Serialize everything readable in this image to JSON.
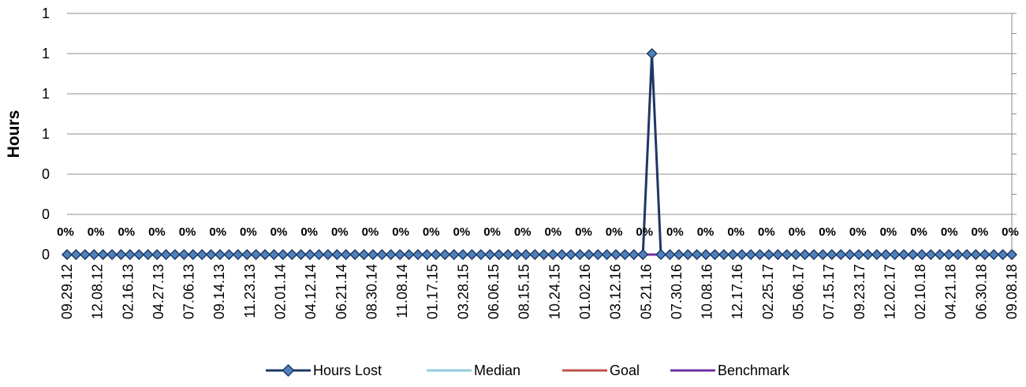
{
  "chart_data": {
    "type": "line",
    "ylabel": "Hours",
    "ylim": [
      0,
      1.2
    ],
    "y_tick_labels": [
      "0",
      "0",
      "0",
      "1",
      "1",
      "1",
      "1"
    ],
    "grid": true,
    "legend_position": "bottom",
    "point_count": 106,
    "x_tick_labels": [
      "09.29.12",
      "12.08.12",
      "02.16.13",
      "04.27.13",
      "07.06.13",
      "09.14.13",
      "11.23.13",
      "02.01.14",
      "04.12.14",
      "06.21.14",
      "08.30.14",
      "11.08.14",
      "01.17.15",
      "03.28.15",
      "06.06.15",
      "08.15.15",
      "10.24.15",
      "01.02.16",
      "03.12.16",
      "05.21.16",
      "07.30.16",
      "10.08.16",
      "12.17.16",
      "02.25.17",
      "05.06.17",
      "07.15.17",
      "09.23.17",
      "12.02.17",
      "02.10.18",
      "04.21.18",
      "06.30.18",
      "09.08.18"
    ],
    "data_labels": [
      "0%",
      "0%",
      "0%",
      "0%",
      "0%",
      "0%",
      "0%",
      "0%",
      "0%",
      "0%",
      "0%",
      "0%",
      "0%",
      "0%",
      "0%",
      "0%",
      "0%",
      "0%",
      "0%",
      "0%",
      "0%",
      "0%",
      "0%",
      "0%",
      "0%",
      "0%",
      "0%",
      "0%",
      "0%",
      "0%",
      "0%",
      "0%"
    ],
    "series": [
      {
        "name": "Hours Lost",
        "color": "#1f3864",
        "marker": "diamond",
        "spike_index": 65,
        "spike_value": 1,
        "baseline_value": 0
      },
      {
        "name": "Median",
        "color": "#92cddc",
        "value": 0
      },
      {
        "name": "Goal",
        "color": "#c0504d",
        "value": 0
      },
      {
        "name": "Benchmark",
        "color": "#7030a0",
        "value": 0
      }
    ]
  }
}
